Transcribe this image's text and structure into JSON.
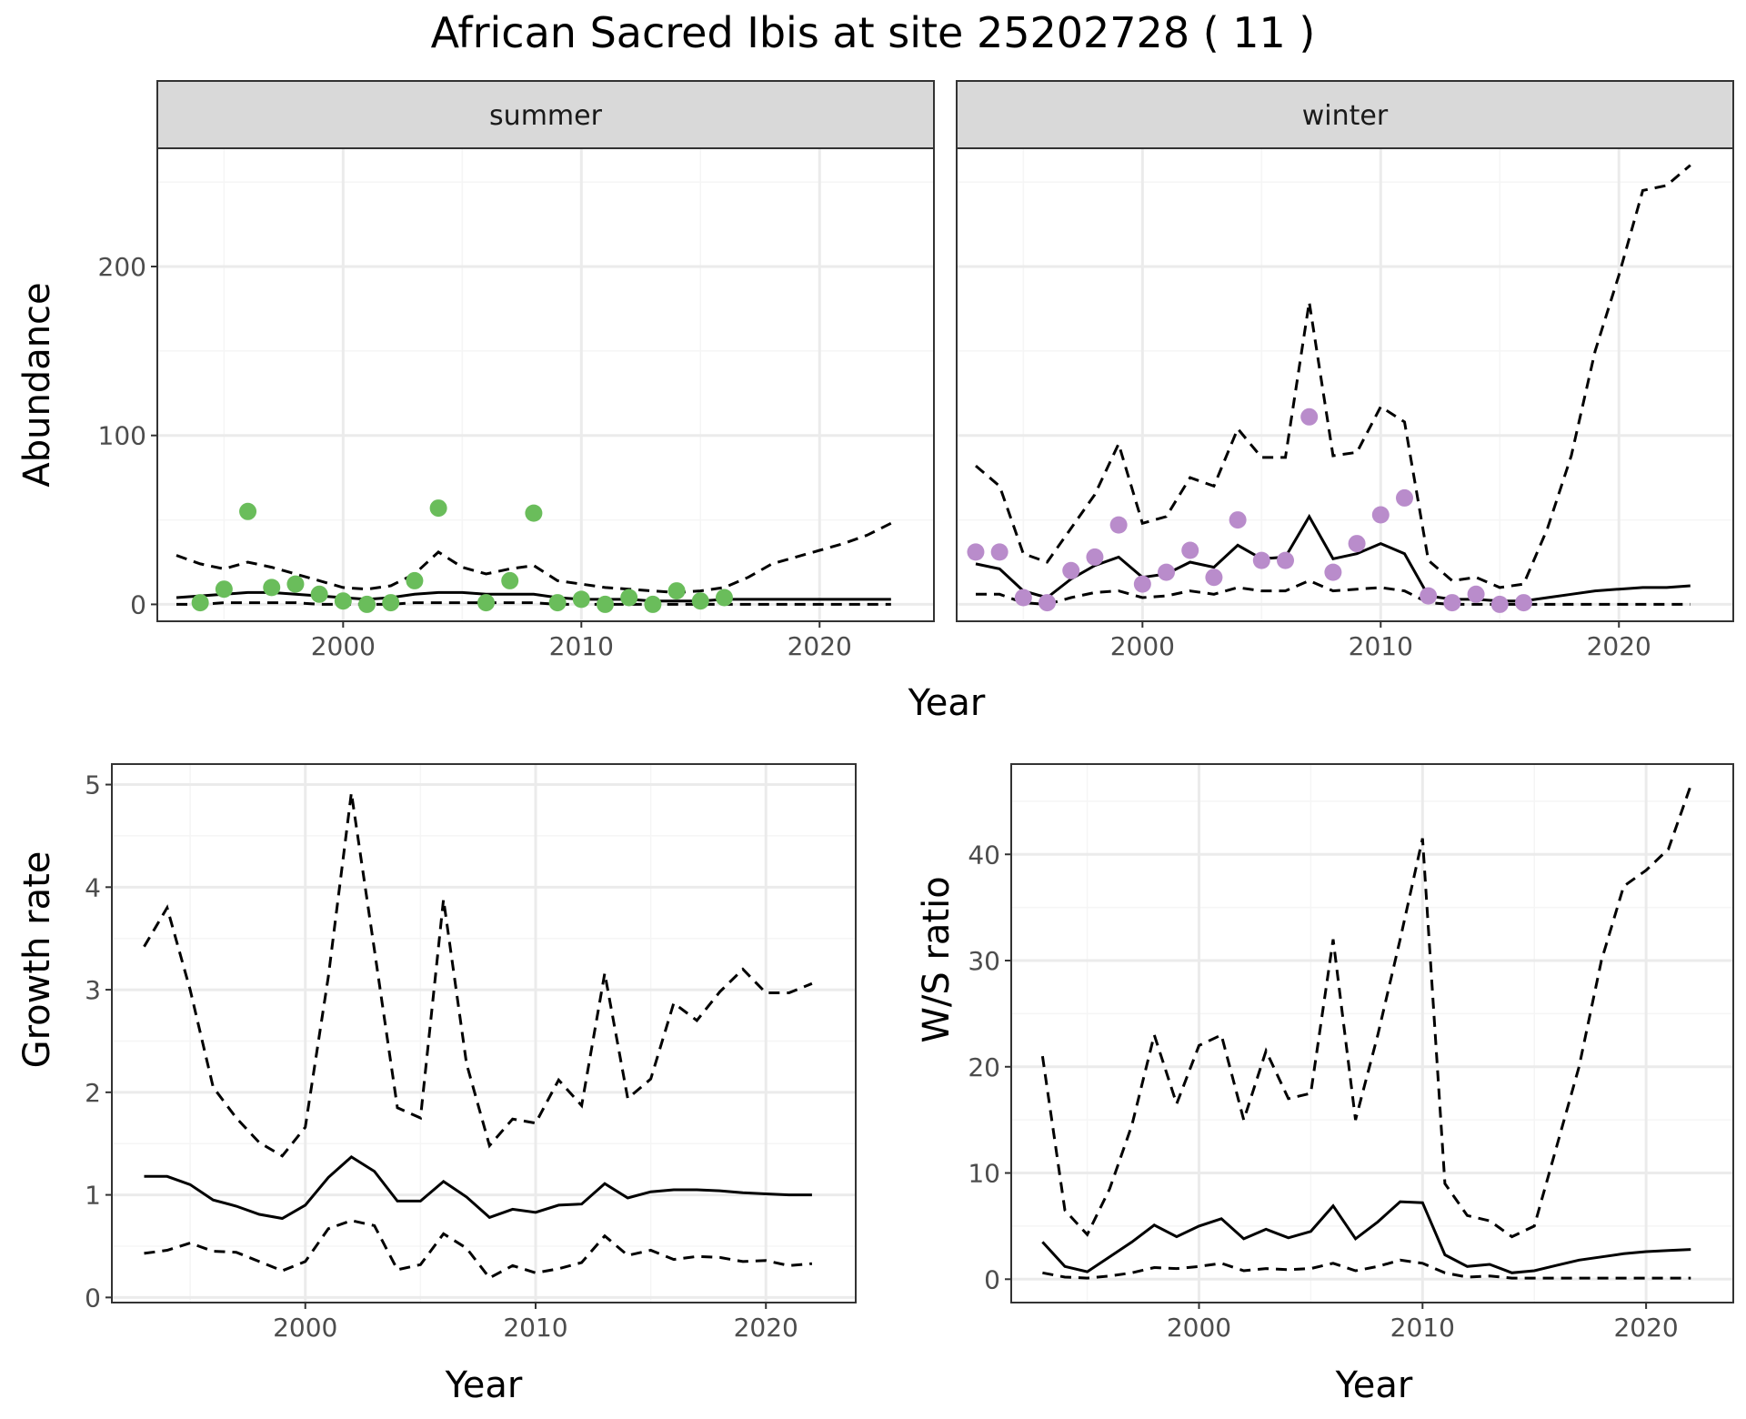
{
  "title": "African Sacred Ibis at site 25202728 ( 11 )",
  "colors": {
    "summer_points": "#6ABD5B",
    "winter_points": "#B98CCB",
    "line": "#000000",
    "strip_fill": "#D9D9D9",
    "grid_major": "#EBEBEB",
    "grid_minor": "#F5F5F5",
    "panel_border": "#333333"
  },
  "chart_data": [
    {
      "id": "abundance",
      "type": "line",
      "ylabel": "Abundance",
      "xlabel": "Year",
      "xlim": [
        1992.2,
        2024.8
      ],
      "ylim": [
        -10,
        270
      ],
      "x_ticks": [
        2000,
        2010,
        2020
      ],
      "y_ticks": [
        0,
        100,
        200
      ],
      "facets": [
        {
          "name": "summer",
          "point_color": "#6ABD5B",
          "points": {
            "x": [
              1994,
              1995,
              1996,
              1997,
              1998,
              1999,
              2000,
              2001,
              2002,
              2003,
              2004,
              2006,
              2007,
              2008,
              2009,
              2010,
              2011,
              2012,
              2013,
              2014,
              2015,
              2016
            ],
            "y": [
              1,
              9,
              55,
              10,
              12,
              6,
              2,
              0,
              1,
              14,
              57,
              1,
              14,
              54,
              1,
              3,
              0,
              4,
              0,
              8,
              2,
              4
            ]
          },
          "fit_x": [
            1993,
            1994,
            1995,
            1996,
            1997,
            1998,
            1999,
            2000,
            2001,
            2002,
            2003,
            2004,
            2005,
            2006,
            2007,
            2008,
            2009,
            2010,
            2011,
            2012,
            2013,
            2014,
            2015,
            2016,
            2017,
            2018,
            2019,
            2020,
            2021,
            2022,
            2023
          ],
          "fit": [
            4,
            5,
            6,
            7,
            7,
            6,
            5,
            4,
            3,
            4,
            6,
            7,
            7,
            6,
            6,
            6,
            4,
            3,
            3,
            3,
            2,
            2,
            2,
            3,
            3,
            3,
            3,
            3,
            3,
            3,
            3
          ],
          "upper": [
            29,
            24,
            21,
            25,
            22,
            18,
            14,
            10,
            9,
            11,
            18,
            31,
            22,
            18,
            21,
            23,
            14,
            12,
            10,
            9,
            8,
            7,
            8,
            10,
            16,
            24,
            28,
            32,
            36,
            41,
            48
          ],
          "lower": [
            0,
            0,
            1,
            1,
            1,
            1,
            0,
            0,
            0,
            0,
            1,
            1,
            1,
            1,
            1,
            1,
            0,
            0,
            0,
            0,
            0,
            0,
            0,
            0,
            0,
            0,
            0,
            0,
            0,
            0,
            0
          ]
        },
        {
          "name": "winter",
          "point_color": "#B98CCB",
          "points": {
            "x": [
              1993,
              1994,
              1995,
              1996,
              1997,
              1998,
              1999,
              2000,
              2001,
              2002,
              2003,
              2004,
              2005,
              2006,
              2007,
              2008,
              2009,
              2010,
              2011,
              2012,
              2013,
              2014,
              2015,
              2016
            ],
            "y": [
              31,
              31,
              4,
              1,
              20,
              28,
              47,
              12,
              19,
              32,
              16,
              50,
              26,
              26,
              111,
              19,
              36,
              53,
              63,
              5,
              1,
              6,
              0,
              1
            ]
          },
          "fit_x": [
            1993,
            1994,
            1995,
            1996,
            1997,
            1998,
            1999,
            2000,
            2001,
            2002,
            2003,
            2004,
            2005,
            2006,
            2007,
            2008,
            2009,
            2010,
            2011,
            2012,
            2013,
            2014,
            2015,
            2016,
            2017,
            2018,
            2019,
            2020,
            2021,
            2022,
            2023
          ],
          "fit": [
            24,
            21,
            8,
            4,
            15,
            23,
            28,
            16,
            18,
            25,
            22,
            35,
            27,
            28,
            52,
            27,
            30,
            36,
            30,
            5,
            3,
            3,
            2,
            2,
            4,
            6,
            8,
            9,
            10,
            10,
            11
          ],
          "upper": [
            82,
            70,
            30,
            25,
            45,
            65,
            95,
            48,
            52,
            75,
            70,
            104,
            87,
            87,
            179,
            88,
            90,
            117,
            108,
            26,
            14,
            16,
            10,
            12,
            45,
            88,
            150,
            195,
            245,
            248,
            260
          ],
          "lower": [
            6,
            6,
            1,
            0,
            4,
            7,
            8,
            4,
            5,
            8,
            6,
            10,
            8,
            8,
            14,
            8,
            9,
            10,
            8,
            1,
            0,
            0,
            0,
            0,
            0,
            0,
            0,
            0,
            0,
            0,
            0
          ]
        }
      ]
    },
    {
      "id": "growth",
      "type": "line",
      "ylabel": "Growth rate",
      "xlabel": "Year",
      "xlim": [
        1991.6,
        2023.9
      ],
      "ylim": [
        -0.05,
        5.2
      ],
      "x_ticks": [
        2000,
        2010,
        2020
      ],
      "y_ticks": [
        0,
        1,
        2,
        3,
        4,
        5
      ],
      "x": [
        1993,
        1994,
        1995,
        1996,
        1997,
        1998,
        1999,
        2000,
        2001,
        2002,
        2003,
        2004,
        2005,
        2006,
        2007,
        2008,
        2009,
        2010,
        2011,
        2012,
        2013,
        2014,
        2015,
        2016,
        2017,
        2018,
        2019,
        2020,
        2021,
        2022
      ],
      "fit": [
        1.18,
        1.18,
        1.1,
        0.95,
        0.89,
        0.81,
        0.77,
        0.9,
        1.17,
        1.37,
        1.23,
        0.94,
        0.94,
        1.13,
        0.98,
        0.78,
        0.86,
        0.83,
        0.9,
        0.91,
        1.11,
        0.97,
        1.03,
        1.05,
        1.05,
        1.04,
        1.02,
        1.01,
        1.0,
        1.0
      ],
      "upper": [
        3.42,
        3.8,
        3.0,
        2.05,
        1.75,
        1.51,
        1.38,
        1.66,
        3.13,
        4.92,
        3.39,
        1.85,
        1.75,
        3.88,
        2.28,
        1.48,
        1.74,
        1.7,
        2.12,
        1.87,
        3.16,
        1.94,
        2.13,
        2.87,
        2.7,
        2.98,
        3.2,
        2.97,
        2.97,
        3.06
      ],
      "lower": [
        0.43,
        0.46,
        0.53,
        0.45,
        0.44,
        0.35,
        0.26,
        0.35,
        0.67,
        0.75,
        0.7,
        0.27,
        0.32,
        0.62,
        0.48,
        0.19,
        0.31,
        0.24,
        0.28,
        0.34,
        0.6,
        0.41,
        0.46,
        0.37,
        0.4,
        0.39,
        0.35,
        0.36,
        0.31,
        0.33
      ]
    },
    {
      "id": "ws_ratio",
      "type": "line",
      "ylabel": "W/S ratio",
      "xlabel": "Year",
      "xlim": [
        1991.6,
        2023.9
      ],
      "ylim": [
        -2.2,
        48.5
      ],
      "x_ticks": [
        2000,
        2010,
        2020
      ],
      "y_ticks": [
        0,
        10,
        20,
        30,
        40
      ],
      "x": [
        1993,
        1994,
        1995,
        1996,
        1997,
        1998,
        1999,
        2000,
        2001,
        2002,
        2003,
        2004,
        2005,
        2006,
        2007,
        2008,
        2009,
        2010,
        2011,
        2012,
        2013,
        2014,
        2015,
        2016,
        2017,
        2018,
        2019,
        2020,
        2021,
        2022
      ],
      "fit": [
        3.5,
        1.2,
        0.7,
        2.1,
        3.5,
        5.1,
        4.0,
        5.0,
        5.7,
        3.8,
        4.7,
        3.9,
        4.5,
        6.9,
        3.8,
        5.4,
        7.3,
        7.2,
        2.3,
        1.2,
        1.4,
        0.6,
        0.8,
        1.3,
        1.8,
        2.1,
        2.4,
        2.6,
        2.7,
        2.8
      ],
      "upper": [
        21.0,
        6.5,
        4.2,
        8.5,
        14.5,
        23.0,
        16.5,
        22.0,
        23.0,
        15.0,
        21.5,
        17.0,
        17.5,
        32.0,
        15.0,
        23.0,
        32.0,
        41.5,
        9.0,
        6.0,
        5.5,
        4.0,
        5.0,
        12.5,
        20.0,
        30.0,
        37.0,
        38.5,
        40.5,
        46.5
      ],
      "lower": [
        0.6,
        0.2,
        0.1,
        0.3,
        0.6,
        1.1,
        1.0,
        1.2,
        1.5,
        0.8,
        1.0,
        0.9,
        1.0,
        1.5,
        0.8,
        1.2,
        1.8,
        1.5,
        0.6,
        0.2,
        0.3,
        0.1,
        0.1,
        0.1,
        0.1,
        0.1,
        0.1,
        0.1,
        0.1,
        0.1
      ]
    }
  ]
}
